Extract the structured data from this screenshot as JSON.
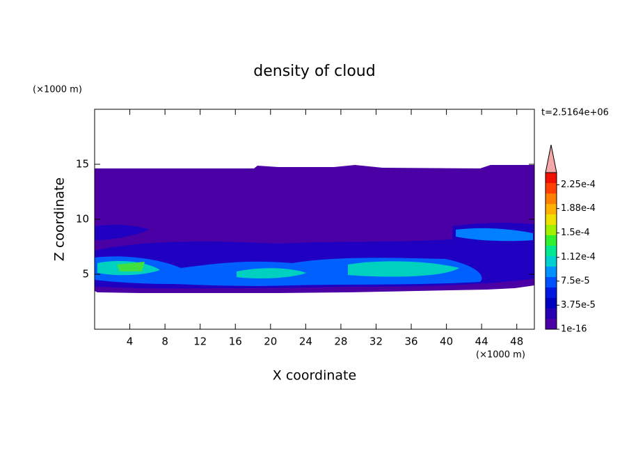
{
  "chart_data": {
    "type": "contour",
    "title": "density of cloud",
    "x_label": "X coordinate",
    "y_label": "Z coordinate",
    "x_unit": "(×1000 m)",
    "y_unit": "(×1000 m)",
    "annotation": "t=2.5164e+06",
    "xlim": [
      0,
      50
    ],
    "ylim": [
      0,
      20
    ],
    "xticks": [
      4,
      8,
      12,
      16,
      20,
      24,
      28,
      32,
      36,
      40,
      44,
      48
    ],
    "yticks": [
      5,
      10,
      15
    ],
    "colorbar": {
      "ticks": [
        {
          "value": 1e-16,
          "label": "1e-16"
        },
        {
          "value": 3.75e-05,
          "label": "3.75e-5"
        },
        {
          "value": 7.5e-05,
          "label": "7.5e-5"
        },
        {
          "value": 0.000112,
          "label": "1.12e-4"
        },
        {
          "value": 0.00015,
          "label": "1.5e-4"
        },
        {
          "value": 0.000188,
          "label": "1.88e-4"
        },
        {
          "value": 0.000225,
          "label": "2.25e-4"
        }
      ],
      "lim": [
        1e-16,
        0.000244
      ],
      "colors": [
        "#4b00a5",
        "#2800b4",
        "#0000c0",
        "#0018e0",
        "#0050ff",
        "#0090ff",
        "#00d0d0",
        "#00e890",
        "#30f030",
        "#a0f000",
        "#f0e000",
        "#ffb000",
        "#ff8000",
        "#ff4000",
        "#f01000"
      ],
      "extend_color": "#f4a8a8"
    }
  }
}
